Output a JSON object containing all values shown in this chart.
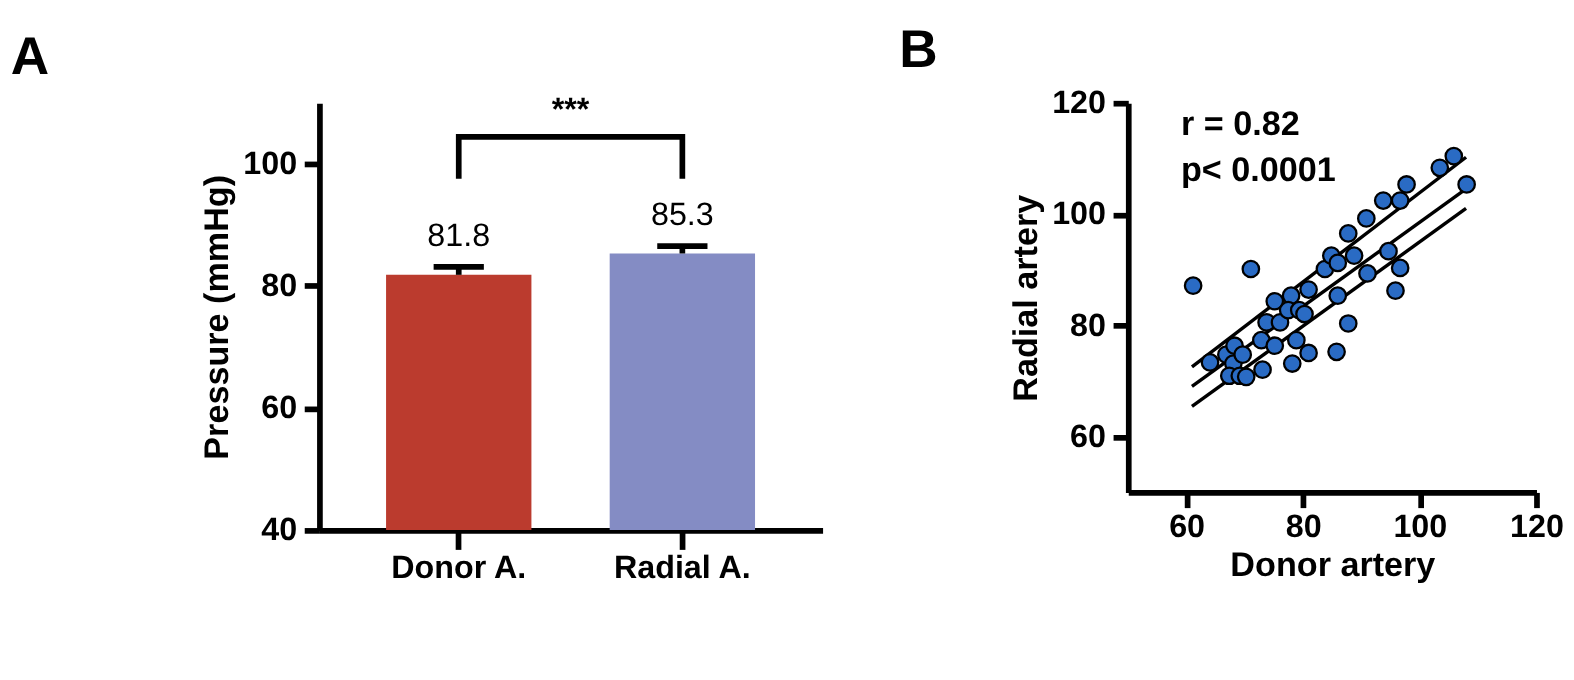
{
  "chart_data": [
    {
      "type": "bar",
      "title": "A",
      "ylabel": "Pressure (mmHg)",
      "categories": [
        "Donor A.",
        "Radial A."
      ],
      "values": [
        81.8,
        85.3
      ],
      "colors": [
        "#bb3b2e",
        "#848cc4"
      ],
      "errors": [
        [
          81.8,
          83.1
        ],
        [
          85.3,
          86.5
        ]
      ],
      "data_labels": true,
      "ylim": [
        40,
        110
      ],
      "yticks": [
        40,
        60,
        80,
        100
      ],
      "grid": false,
      "annotations": [
        "***"
      ]
    },
    {
      "type": "scatter",
      "title": "B",
      "xlabel": "Donor artery",
      "ylabel": "Radial artery",
      "xlim": [
        50,
        120
      ],
      "ylim": [
        50,
        120
      ],
      "xticks": [
        60,
        80,
        100,
        120
      ],
      "yticks": [
        60,
        80,
        100,
        120
      ],
      "grid": false,
      "annotations": [
        "r = 0.82",
        "p< 0.0001"
      ],
      "series": [
        {
          "type": "scatter",
          "marker": "circle",
          "color": "#2a6bc4",
          "x": [
            61.2,
            71.1,
            64.1,
            66.9,
            68.3,
            68.1,
            67.4,
            69.2,
            70.3,
            69.7,
            73.1,
            72.9,
            73.8,
            75.2,
            75.2,
            76.1,
            78.0,
            78.2,
            78.9,
            77.5,
            79.4,
            80.3,
            81.0,
            81.0,
            83.8,
            84.9,
            86.0,
            86.0,
            85.8,
            87.8,
            87.8,
            88.8,
            90.9,
            91.1,
            93.8,
            94.7,
            96.7,
            95.9,
            96.7,
            97.8,
            103.5,
            105.9,
            108.1
          ],
          "values": [
            87.1,
            90.1,
            73.3,
            74.7,
            76.3,
            73.1,
            70.9,
            70.9,
            70.7,
            74.7,
            72.0,
            77.3,
            80.5,
            84.3,
            76.3,
            80.5,
            85.3,
            73.1,
            77.3,
            82.7,
            82.7,
            82.0,
            86.4,
            75.0,
            90.1,
            92.5,
            91.2,
            85.3,
            75.2,
            96.5,
            80.3,
            92.5,
            99.2,
            89.3,
            102.4,
            93.3,
            90.3,
            86.2,
            102.4,
            105.3,
            108.3,
            110.4,
            105.3
          ]
        },
        {
          "type": "line",
          "color": "#000000",
          "x": [
            61,
            108
          ],
          "values": [
            72.5,
            110.2
          ]
        },
        {
          "type": "line",
          "color": "#000000",
          "x": [
            61,
            108
          ],
          "values": [
            69.0,
            104.5
          ]
        },
        {
          "type": "line",
          "color": "#000000",
          "x": [
            61,
            108
          ],
          "values": [
            65.4,
            101.0
          ]
        }
      ]
    }
  ]
}
